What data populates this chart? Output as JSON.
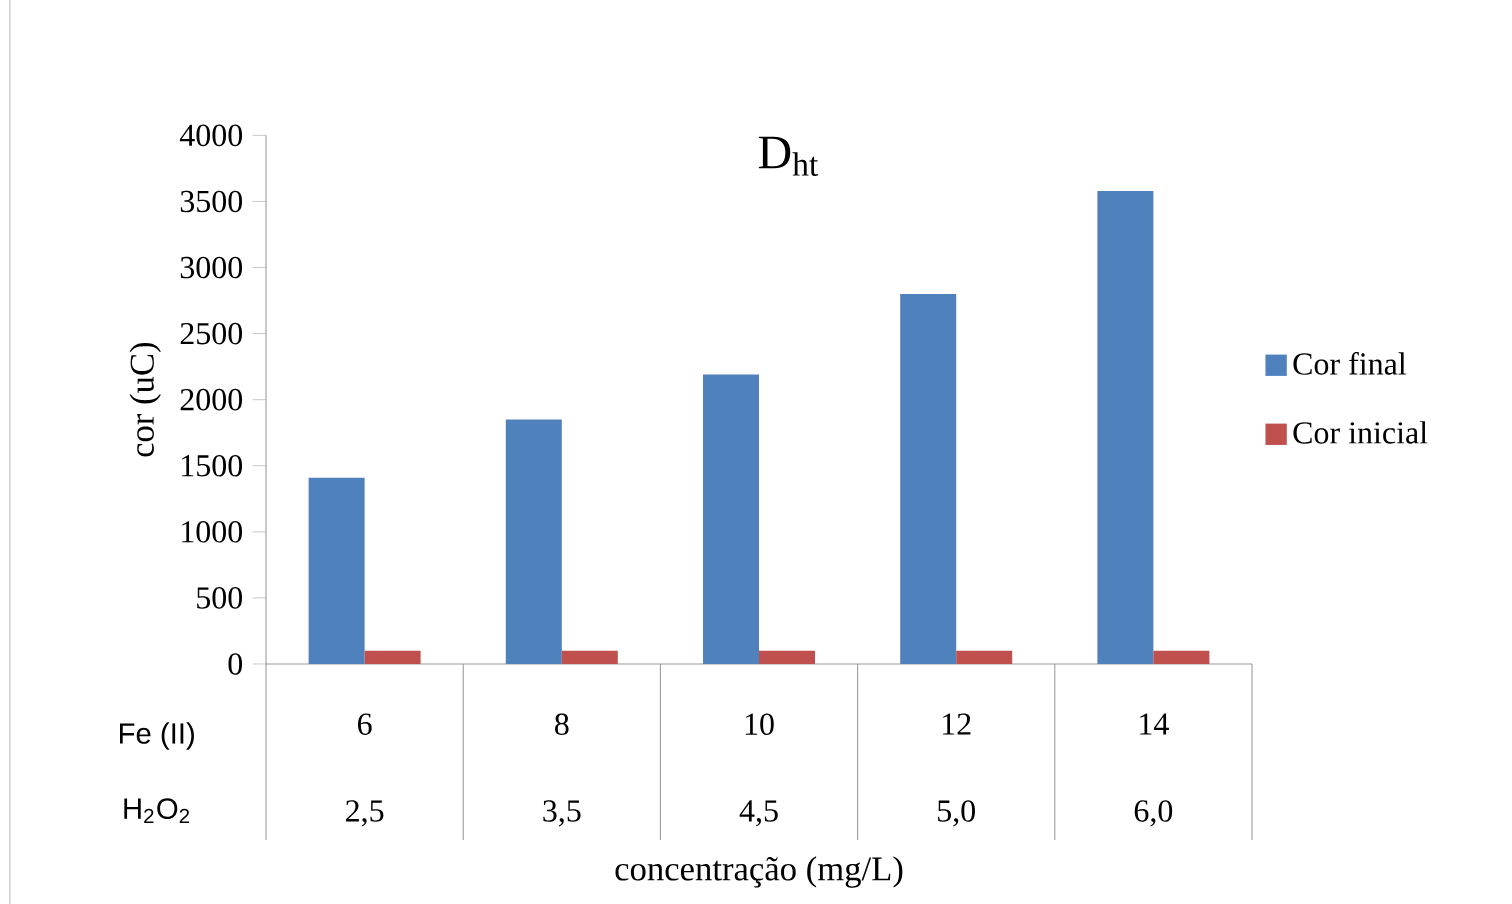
{
  "chart_data": {
    "type": "bar",
    "title": "D$_{ht}$",
    "xlabel": "concentração (mg/L)",
    "ylabel": "cor (uC)",
    "categories": [
      "6",
      "8",
      "10",
      "12",
      "14"
    ],
    "series": [
      {
        "name": "Cor final",
        "color": "#4f81bd",
        "values": [
          1410,
          1850,
          2190,
          2800,
          3580
        ]
      },
      {
        "name": "Cor inicial",
        "color": "#c0504d",
        "values": [
          100,
          100,
          100,
          100,
          100
        ]
      }
    ],
    "ylim": [
      0,
      4000
    ],
    "yticks": [
      0,
      500,
      1000,
      1500,
      2000,
      2500,
      3000,
      3500,
      4000
    ],
    "legend": "right",
    "grid": false,
    "annotations": [
      "Fe (II)",
      "H$_{2}$O$_{2}$",
      "2,5",
      "3,5",
      "4,5",
      "5,0",
      "6,0"
    ]
  }
}
